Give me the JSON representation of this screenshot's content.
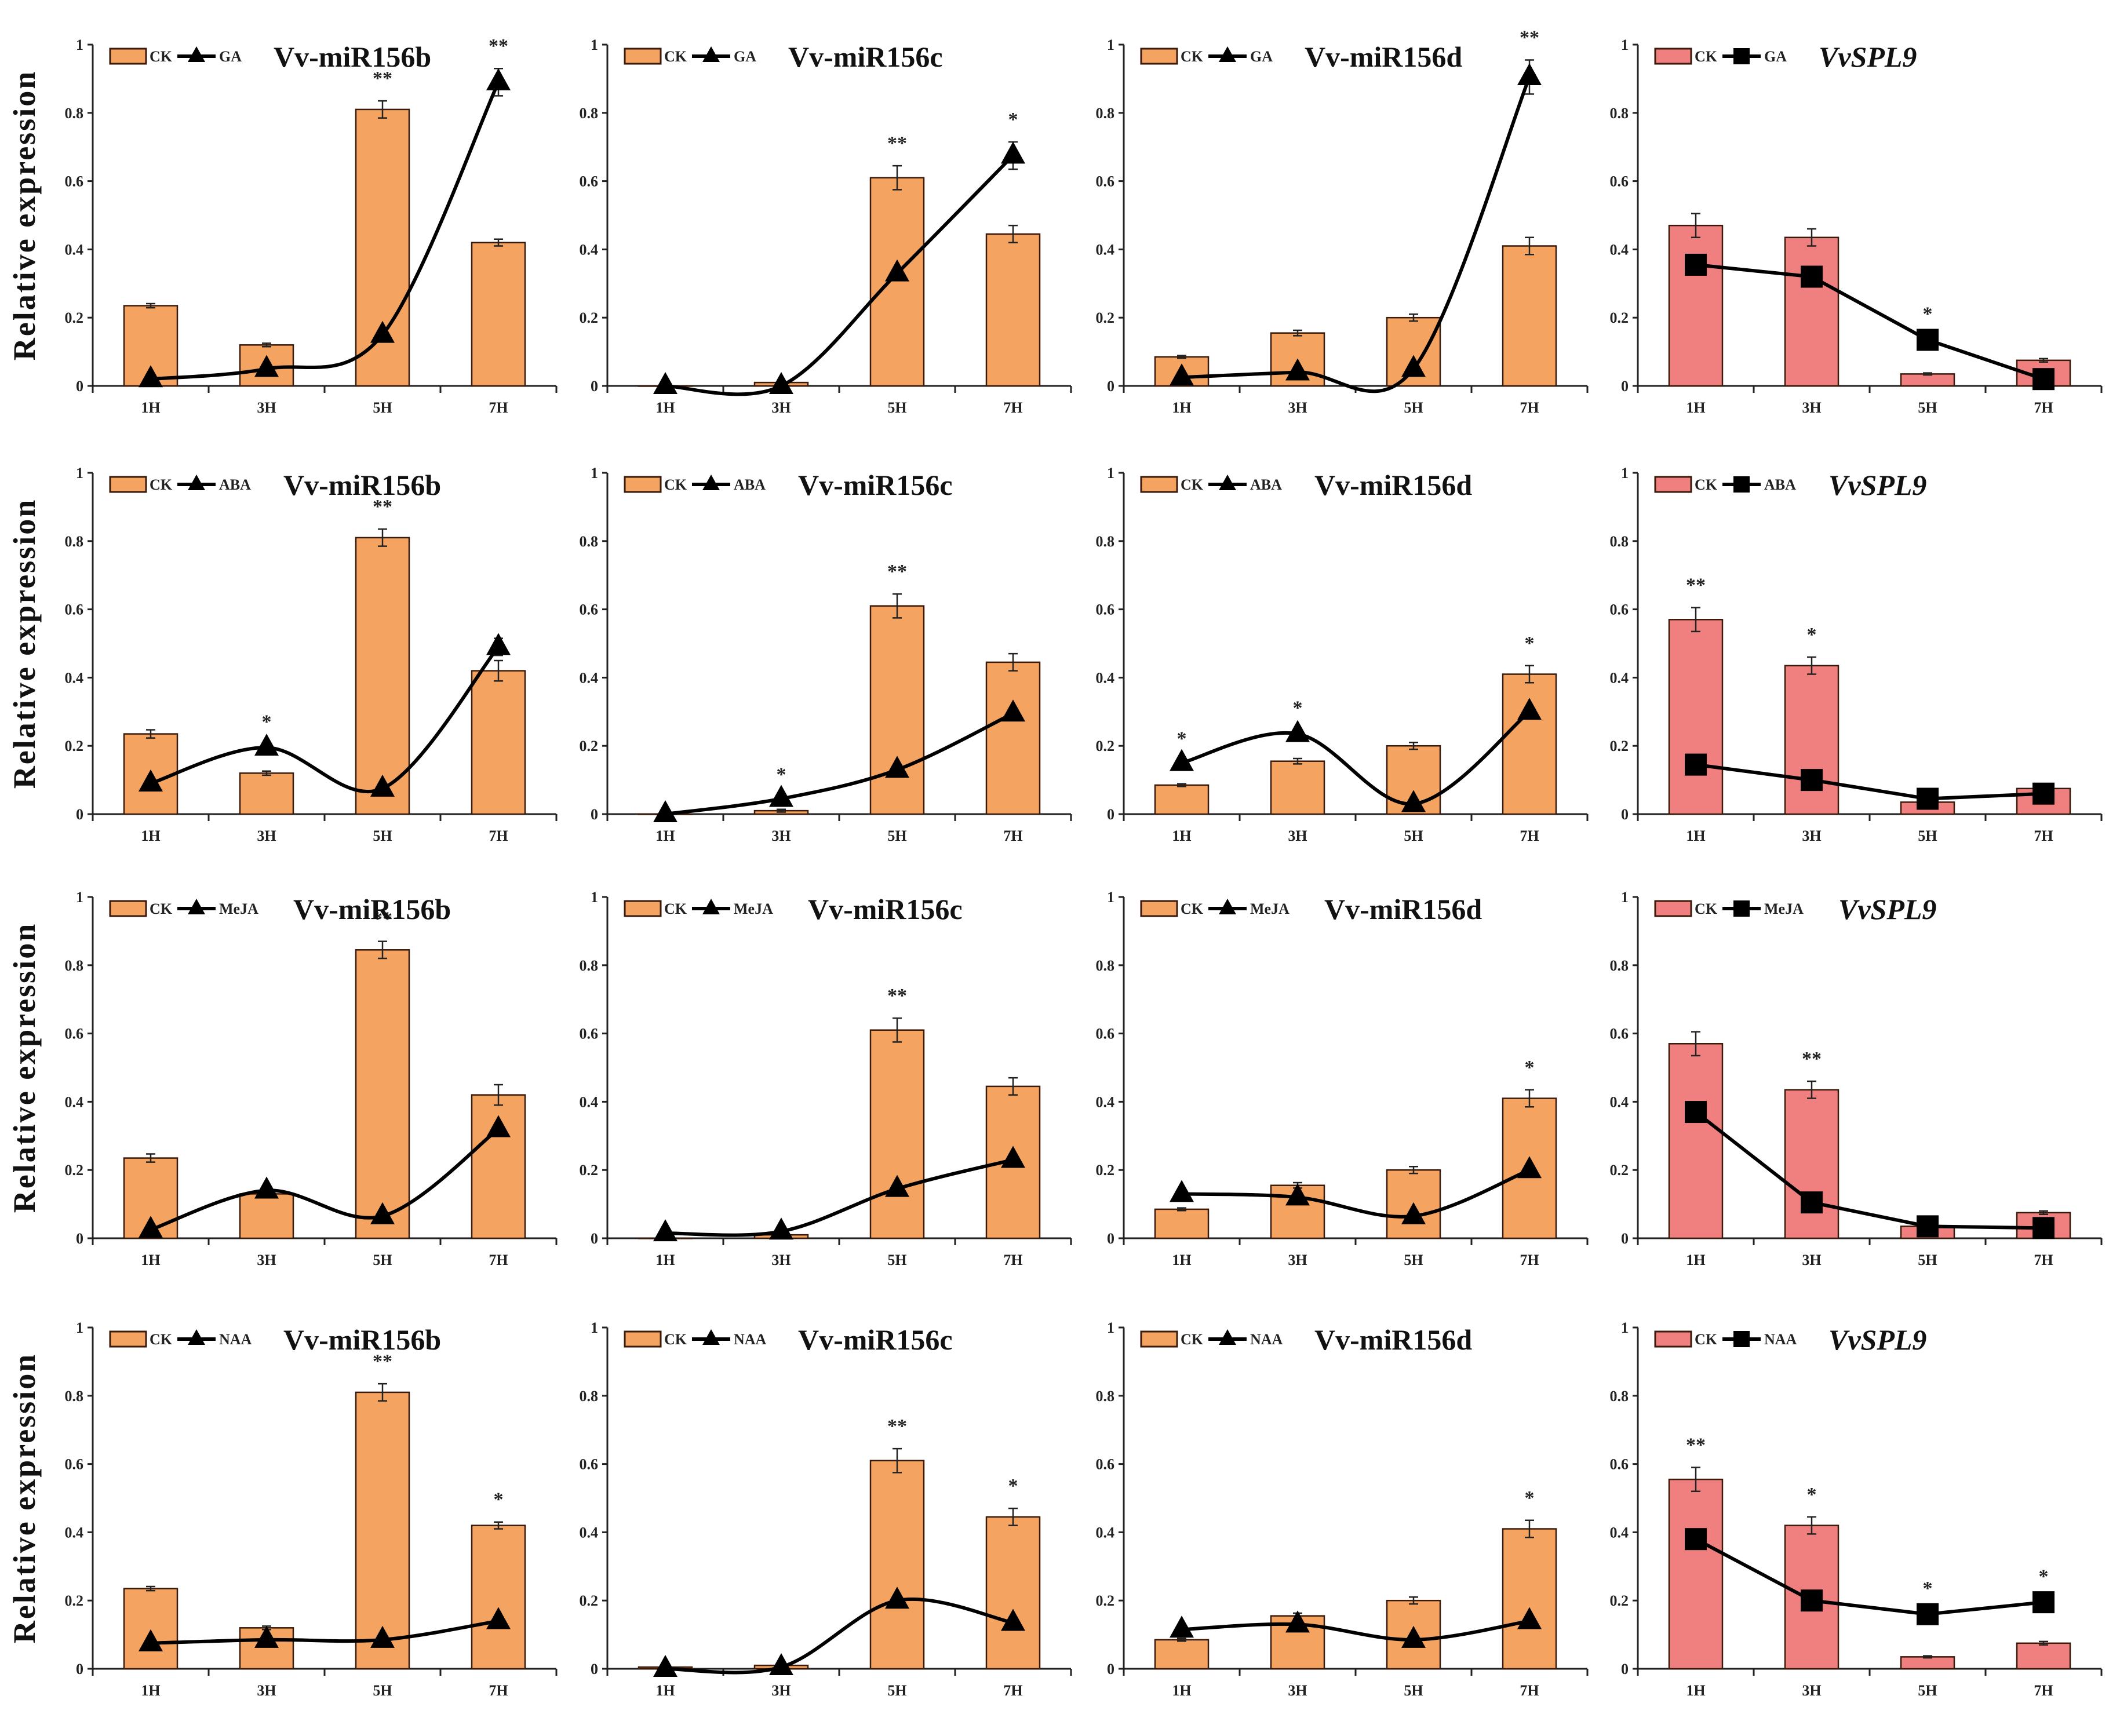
{
  "chart_data": {
    "type": "bar",
    "ylabel": "Relative expression",
    "ylim": [
      0,
      1
    ],
    "yticks": [
      "0",
      "0.2",
      "0.4",
      "0.6",
      "0.8",
      "1"
    ],
    "categories": [
      "1H",
      "3H",
      "5H",
      "7H"
    ],
    "colors": {
      "mir": "#F4A460",
      "spl": "#F08080",
      "line": "#000000",
      "edge": "#3a1a0a"
    },
    "panels": [
      {
        "title": "Vv-miR156b",
        "italic": false,
        "treatment": "GA",
        "marker": "triangle",
        "ck": [
          0.235,
          0.12,
          0.81,
          0.42
        ],
        "ck_err": [
          0.006,
          0.005,
          0.025,
          0.01
        ],
        "treat": [
          0.02,
          0.05,
          0.15,
          0.89
        ],
        "treat_err": [
          0.005,
          0.005,
          0.01,
          0.04
        ],
        "stars": [
          "",
          "",
          "**",
          "**"
        ]
      },
      {
        "title": "Vv-miR156c",
        "italic": false,
        "treatment": "GA",
        "marker": "triangle",
        "ck": [
          0.0,
          0.01,
          0.61,
          0.445
        ],
        "ck_err": [
          0,
          0.004,
          0.035,
          0.025
        ],
        "treat": [
          0.0,
          0.0,
          0.33,
          0.675
        ],
        "treat_err": [
          0,
          0,
          0.01,
          0.04
        ],
        "stars": [
          "",
          "",
          "**",
          "*"
        ]
      },
      {
        "title": "Vv-miR156d",
        "italic": false,
        "treatment": "GA",
        "marker": "triangle",
        "ck": [
          0.085,
          0.155,
          0.2,
          0.41
        ],
        "ck_err": [
          0.004,
          0.008,
          0.01,
          0.025
        ],
        "treat": [
          0.025,
          0.04,
          0.05,
          0.905
        ],
        "treat_err": [
          0.005,
          0.005,
          0.005,
          0.05
        ],
        "stars": [
          "",
          "",
          "",
          "**"
        ]
      },
      {
        "title": "VvSPL9",
        "italic": true,
        "treatment": "GA",
        "marker": "square",
        "ck": [
          0.47,
          0.435,
          0.035,
          0.075
        ],
        "ck_err": [
          0.035,
          0.025,
          0.003,
          0.005
        ],
        "treat": [
          0.355,
          0.32,
          0.135,
          0.02
        ],
        "treat_err": [
          0.01,
          0.01,
          0.01,
          0.005
        ],
        "stars": [
          "",
          "",
          "*",
          ""
        ]
      },
      {
        "title": "Vv-miR156b",
        "italic": false,
        "treatment": "ABA",
        "marker": "triangle",
        "ck": [
          0.235,
          0.12,
          0.81,
          0.42
        ],
        "ck_err": [
          0.012,
          0.006,
          0.025,
          0.03
        ],
        "treat": [
          0.09,
          0.195,
          0.075,
          0.49
        ],
        "treat_err": [
          0.005,
          0.01,
          0.005,
          0.025
        ],
        "stars": [
          "",
          "*",
          "**",
          ""
        ]
      },
      {
        "title": "Vv-miR156c",
        "italic": false,
        "treatment": "ABA",
        "marker": "triangle",
        "ck": [
          0.0,
          0.01,
          0.61,
          0.445
        ],
        "ck_err": [
          0,
          0.004,
          0.035,
          0.025
        ],
        "treat": [
          0.0,
          0.045,
          0.13,
          0.295
        ],
        "treat_err": [
          0,
          0.005,
          0.01,
          0.01
        ],
        "stars": [
          "",
          "*",
          "**",
          ""
        ]
      },
      {
        "title": "Vv-miR156d",
        "italic": false,
        "treatment": "ABA",
        "marker": "triangle",
        "ck": [
          0.085,
          0.155,
          0.2,
          0.41
        ],
        "ck_err": [
          0.004,
          0.008,
          0.01,
          0.025
        ],
        "treat": [
          0.15,
          0.235,
          0.03,
          0.3
        ],
        "treat_err": [
          0.005,
          0.01,
          0.005,
          0.01
        ],
        "stars": [
          "*",
          "*",
          "",
          "*"
        ]
      },
      {
        "title": "VvSPL9",
        "italic": true,
        "treatment": "ABA",
        "marker": "square",
        "ck": [
          0.57,
          0.435,
          0.035,
          0.075
        ],
        "ck_err": [
          0.035,
          0.025,
          0.003,
          0.005
        ],
        "treat": [
          0.145,
          0.1,
          0.045,
          0.06
        ],
        "treat_err": [
          0.01,
          0.01,
          0.005,
          0.005
        ],
        "stars": [
          "**",
          "*",
          "",
          ""
        ]
      },
      {
        "title": "Vv-miR156b",
        "italic": false,
        "treatment": "MeJA",
        "marker": "triangle",
        "ck": [
          0.235,
          0.13,
          0.845,
          0.42
        ],
        "ck_err": [
          0.012,
          0.006,
          0.025,
          0.03
        ],
        "treat": [
          0.025,
          0.14,
          0.065,
          0.32
        ],
        "treat_err": [
          0.005,
          0.01,
          0.005,
          0.015
        ],
        "stars": [
          "",
          "",
          "**",
          ""
        ]
      },
      {
        "title": "Vv-miR156c",
        "italic": false,
        "treatment": "MeJA",
        "marker": "triangle",
        "ck": [
          0.0,
          0.01,
          0.61,
          0.445
        ],
        "ck_err": [
          0,
          0.004,
          0.035,
          0.025
        ],
        "treat": [
          0.015,
          0.02,
          0.145,
          0.23
        ],
        "treat_err": [
          0,
          0.005,
          0.01,
          0.01
        ],
        "stars": [
          "",
          "",
          "**",
          ""
        ]
      },
      {
        "title": "Vv-miR156d",
        "italic": false,
        "treatment": "MeJA",
        "marker": "triangle",
        "ck": [
          0.085,
          0.155,
          0.2,
          0.41
        ],
        "ck_err": [
          0.004,
          0.008,
          0.01,
          0.025
        ],
        "treat": [
          0.13,
          0.12,
          0.065,
          0.2
        ],
        "treat_err": [
          0.005,
          0.01,
          0.005,
          0.01
        ],
        "stars": [
          "",
          "",
          "",
          "*"
        ]
      },
      {
        "title": "VvSPL9",
        "italic": true,
        "treatment": "MeJA",
        "marker": "square",
        "ck": [
          0.57,
          0.435,
          0.035,
          0.075
        ],
        "ck_err": [
          0.035,
          0.025,
          0.003,
          0.005
        ],
        "treat": [
          0.37,
          0.105,
          0.035,
          0.03
        ],
        "treat_err": [
          0.01,
          0.01,
          0.005,
          0.005
        ],
        "stars": [
          "",
          "**",
          "",
          ""
        ]
      },
      {
        "title": "Vv-miR156b",
        "italic": false,
        "treatment": "NAA",
        "marker": "triangle",
        "ck": [
          0.235,
          0.12,
          0.81,
          0.42
        ],
        "ck_err": [
          0.006,
          0.005,
          0.025,
          0.01
        ],
        "treat": [
          0.075,
          0.085,
          0.085,
          0.14
        ],
        "treat_err": [
          0.005,
          0.005,
          0.005,
          0.01
        ],
        "stars": [
          "",
          "",
          "**",
          "*"
        ]
      },
      {
        "title": "Vv-miR156c",
        "italic": false,
        "treatment": "NAA",
        "marker": "triangle",
        "ck": [
          0.005,
          0.01,
          0.61,
          0.445
        ],
        "ck_err": [
          0,
          0.004,
          0.035,
          0.025
        ],
        "treat": [
          0.0,
          0.005,
          0.2,
          0.135
        ],
        "treat_err": [
          0,
          0,
          0.01,
          0.01
        ],
        "stars": [
          "",
          "",
          "**",
          "*"
        ]
      },
      {
        "title": "Vv-miR156d",
        "italic": false,
        "treatment": "NAA",
        "marker": "triangle",
        "ck": [
          0.085,
          0.155,
          0.2,
          0.41
        ],
        "ck_err": [
          0.004,
          0.008,
          0.01,
          0.025
        ],
        "treat": [
          0.115,
          0.13,
          0.085,
          0.14
        ],
        "treat_err": [
          0.005,
          0.01,
          0.005,
          0.01
        ],
        "stars": [
          "",
          "",
          "",
          "*"
        ]
      },
      {
        "title": "VvSPL9",
        "italic": true,
        "treatment": "NAA",
        "marker": "square",
        "ck": [
          0.555,
          0.42,
          0.035,
          0.075
        ],
        "ck_err": [
          0.035,
          0.025,
          0.003,
          0.005
        ],
        "treat": [
          0.38,
          0.2,
          0.16,
          0.195
        ],
        "treat_err": [
          0.01,
          0.01,
          0.01,
          0.01
        ],
        "stars": [
          "**",
          "*",
          "*",
          "*"
        ]
      }
    ],
    "legend": {
      "ck": "CK",
      "placement": "top-left"
    }
  }
}
